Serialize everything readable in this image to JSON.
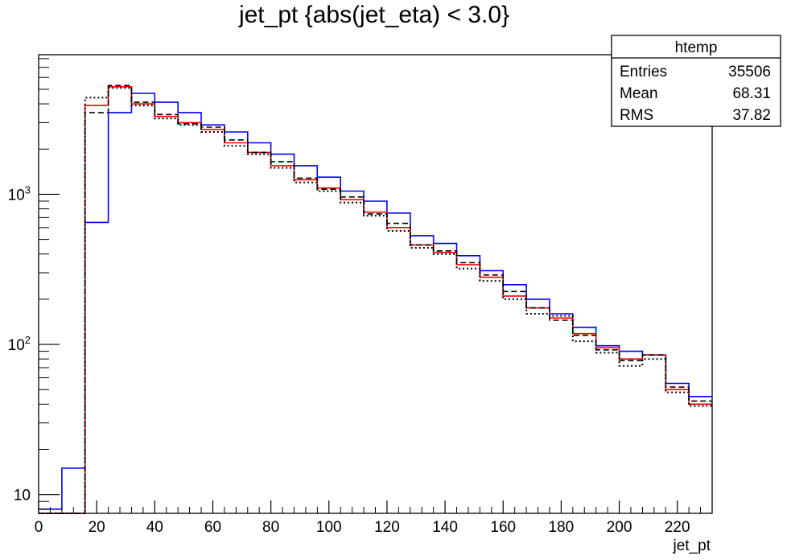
{
  "chart_data": {
    "type": "histogram-step",
    "title": "jet_pt {abs(jet_eta) < 3.0}",
    "xlabel": "jet_pt",
    "ylabel": "",
    "xlim": [
      0,
      232
    ],
    "ylim": [
      7.5,
      8500
    ],
    "y_scale": "log",
    "bin_width": 8,
    "bin_edges": [
      0,
      8,
      16,
      24,
      32,
      40,
      48,
      56,
      64,
      72,
      80,
      88,
      96,
      104,
      112,
      120,
      128,
      136,
      144,
      152,
      160,
      168,
      176,
      184,
      192,
      200,
      208,
      216,
      224,
      232
    ],
    "x_ticks": [
      0,
      20,
      40,
      60,
      80,
      100,
      120,
      140,
      160,
      180,
      200,
      220
    ],
    "x_tick_labels": [
      "0",
      "20",
      "40",
      "60",
      "80",
      "100",
      "120",
      "140",
      "160",
      "180",
      "200",
      "220"
    ],
    "y_ticks": [
      10,
      100,
      1000
    ],
    "y_tick_labels": [
      "10",
      "10^2",
      "10^3"
    ],
    "grid": false,
    "series": [
      {
        "color": "#0000ff",
        "style": "solid",
        "values": [
          8,
          15,
          650,
          3500,
          4700,
          4100,
          3500,
          2900,
          2600,
          2200,
          1850,
          1550,
          1300,
          1050,
          900,
          750,
          530,
          470,
          390,
          310,
          250,
          200,
          160,
          130,
          98,
          90,
          85,
          55,
          45
        ]
      },
      {
        "color": "#ff0000",
        "style": "solid",
        "values": [
          7.5,
          7.5,
          3900,
          5200,
          4000,
          3300,
          3000,
          2700,
          2200,
          1900,
          1550,
          1250,
          1100,
          920,
          760,
          600,
          460,
          410,
          340,
          280,
          210,
          175,
          150,
          118,
          95,
          80,
          85,
          50,
          40
        ]
      },
      {
        "color": "#000000",
        "style": "dashed",
        "values": [
          7.5,
          7.5,
          3500,
          5300,
          4100,
          3400,
          2950,
          2800,
          2300,
          1900,
          1650,
          1280,
          1080,
          960,
          740,
          640,
          460,
          420,
          350,
          290,
          225,
          175,
          145,
          115,
          92,
          78,
          85,
          52,
          42
        ]
      },
      {
        "color": "#000000",
        "style": "dotted",
        "values": [
          7.5,
          7.5,
          4400,
          5100,
          3900,
          3200,
          2900,
          2600,
          2100,
          1850,
          1500,
          1200,
          1050,
          880,
          720,
          570,
          440,
          400,
          320,
          265,
          200,
          160,
          155,
          105,
          88,
          72,
          80,
          48,
          39
        ]
      }
    ]
  },
  "stats_box": {
    "title": "htemp",
    "rows": [
      {
        "label": "Entries",
        "value": "35506"
      },
      {
        "label": "Mean",
        "value": "68.31"
      },
      {
        "label": "RMS",
        "value": "37.82"
      }
    ]
  }
}
